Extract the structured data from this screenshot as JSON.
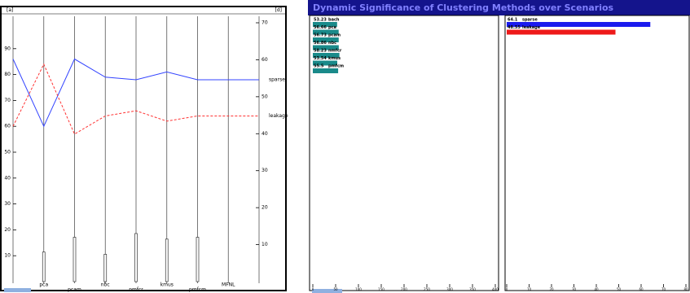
{
  "chart_data": {
    "type": "line",
    "corner_left": "[a]",
    "corner_right": "[d]",
    "categories": [
      null,
      "pca",
      "pcam",
      "nbc",
      "nmfcr",
      "kmus",
      "pmfcm",
      "MFNL",
      null
    ],
    "series": [
      {
        "name": "sparse",
        "color": "#3344ff",
        "dash": false,
        "values": [
          86,
          60,
          86,
          79,
          78,
          81,
          78,
          78,
          78
        ]
      },
      {
        "name": "leakage",
        "color": "#ff3333",
        "dash": true,
        "values": [
          60,
          84,
          57,
          64,
          66,
          62,
          64,
          64,
          64
        ]
      }
    ],
    "bars": [
      null,
      8,
      12,
      7.4,
      13,
      11.5,
      12,
      null,
      null
    ],
    "ylim": [
      0,
      100
    ],
    "yticks": [
      10,
      20,
      30,
      40,
      50,
      60,
      70,
      80,
      90
    ],
    "y2lim": [
      0,
      70
    ],
    "y2ticks": [
      10,
      20,
      30,
      40,
      50,
      60,
      70
    ]
  },
  "bar_lists": {
    "title": "Dynamic Significance of Clustering Methods over Scenarios",
    "panels": [
      {
        "color": "#1a8a8a",
        "xlim": [
          0,
          400
        ],
        "xticks": [
          0,
          50,
          100,
          150,
          200,
          250,
          300,
          350,
          400
        ],
        "items": [
          {
            "label": "bach",
            "value": 53.23
          },
          {
            "label": "pca",
            "value": 56.66
          },
          {
            "label": "pcam",
            "value": 56.73
          },
          {
            "label": "nbc",
            "value": 56.86
          },
          {
            "label": "nmfcr",
            "value": 58.23
          },
          {
            "label": "kmus",
            "value": 53.54
          },
          {
            "label": "pmfcm",
            "value": 55.5
          }
        ]
      },
      {
        "color": null,
        "xlim": [
          0,
          80
        ],
        "xticks": [
          0,
          10,
          20,
          30,
          40,
          50,
          60,
          70,
          80
        ],
        "items": [
          {
            "label": "sparse",
            "value": 64.1,
            "color": "#1a1aee"
          },
          {
            "label": "leakage",
            "value": 48.55,
            "color": "#ee1a1a"
          }
        ]
      }
    ]
  }
}
